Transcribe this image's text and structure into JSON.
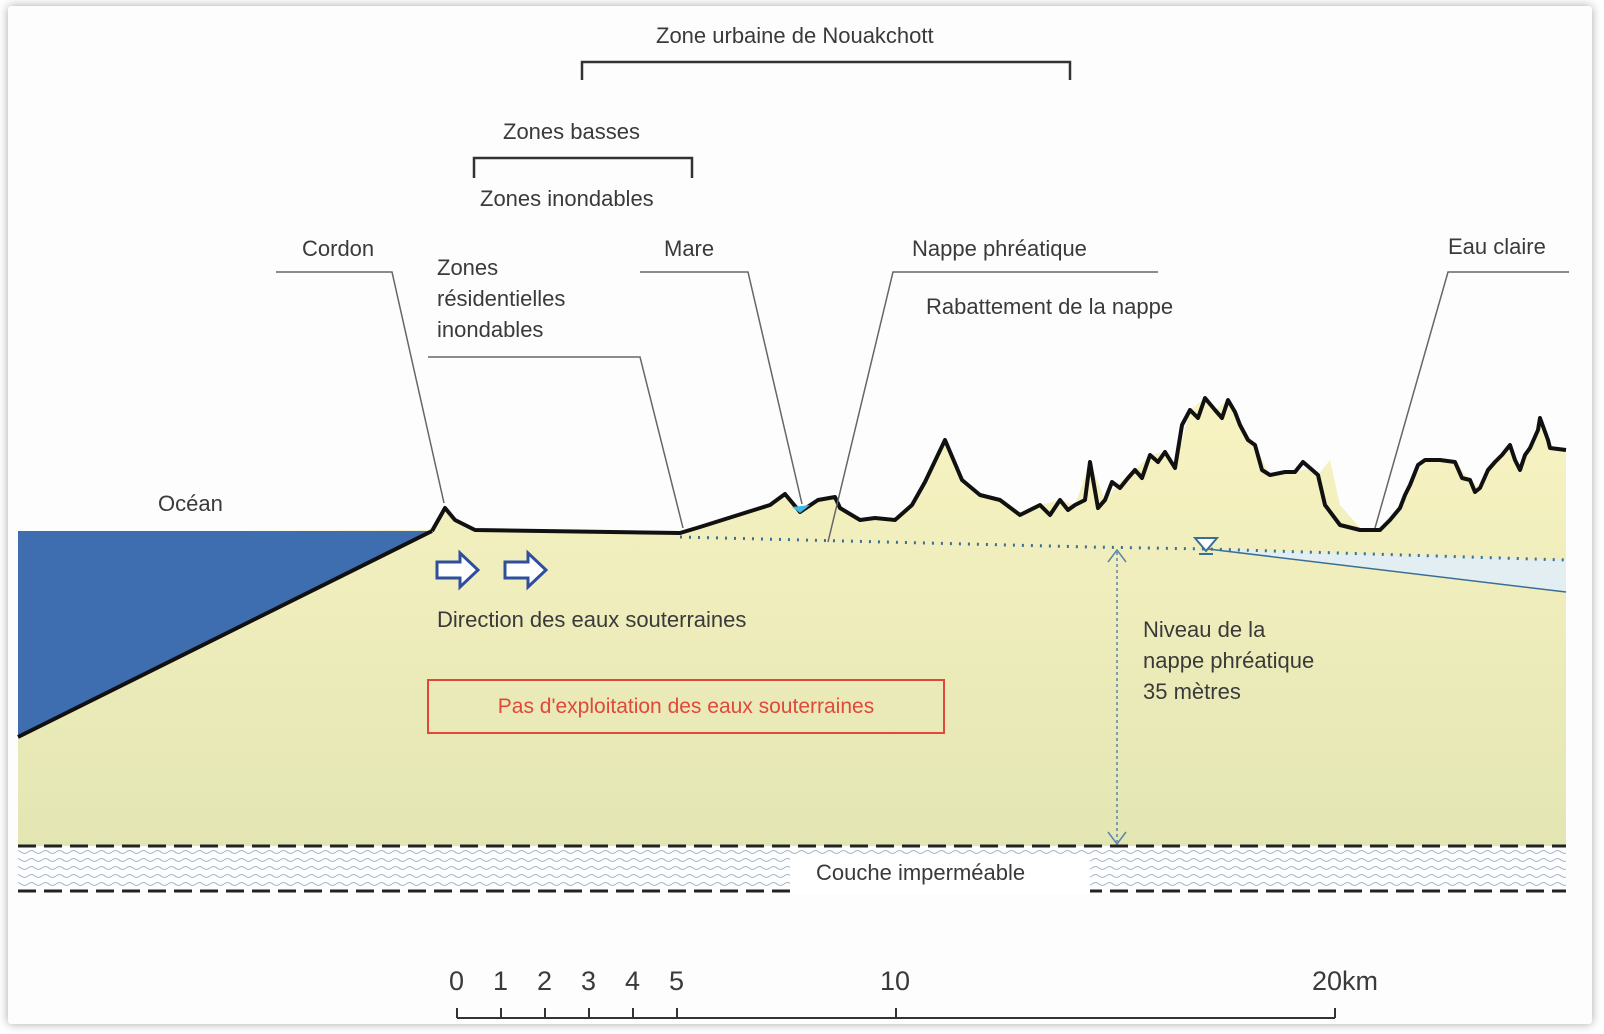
{
  "labels": {
    "zone_urbaine": "Zone urbaine de Nouakchott",
    "zones_basses": "Zones basses",
    "zones_inondables": "Zones inondables",
    "cordon": "Cordon",
    "zones_residentielles": [
      "Zones",
      "résidentielles",
      "inondables"
    ],
    "mare": "Mare",
    "nappe_phreatique": "Nappe phréatique",
    "rabattement": "Rabattement de la nappe",
    "eau_claire": "Eau claire",
    "ocean": "Océan",
    "direction": "Direction des eaux souterraines",
    "pas_exploitation": "Pas d'exploitation des eaux souterraines",
    "niveau": [
      "Niveau de la",
      "nappe phréatique",
      "35 mètres"
    ],
    "couche": "Couche imperméable"
  },
  "scale": {
    "ticks": [
      "0",
      "1",
      "2",
      "3",
      "4",
      "5",
      "10",
      "20km"
    ]
  },
  "colors": {
    "ocean": "#3e6db0",
    "ground_upper": "#f6f1bd",
    "ground_lower": "#e4e6b4",
    "water_blue": "#3fb8e6",
    "warning_red": "#e0483b",
    "dotted_line": "#3a6f95",
    "arrow_blue": "#2f4f9e"
  }
}
